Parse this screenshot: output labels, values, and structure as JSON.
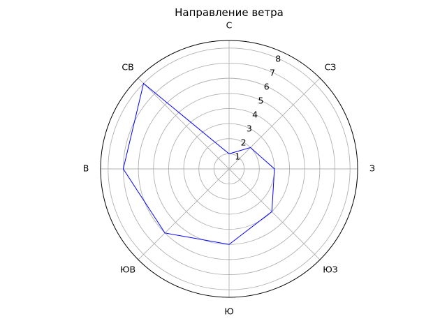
{
  "chart_data": {
    "type": "line",
    "projection": "polar",
    "title": "Направление ветра",
    "directions": [
      "С",
      "СЗ",
      "З",
      "ЮЗ",
      "Ю",
      "ЮВ",
      "В",
      "СВ"
    ],
    "direction_angles_deg": [
      0,
      45,
      90,
      135,
      180,
      225,
      270,
      315
    ],
    "theta_zero": "N",
    "theta_direction": "clockwise",
    "rlim": [
      0,
      8.5
    ],
    "r_ticks": [
      1,
      2,
      3,
      4,
      5,
      6,
      7,
      8
    ],
    "grid": true,
    "series": [
      {
        "values": [
          1,
          2,
          3,
          4,
          5,
          6,
          7,
          8
        ],
        "color": "#0000ff",
        "closed": true
      }
    ]
  }
}
